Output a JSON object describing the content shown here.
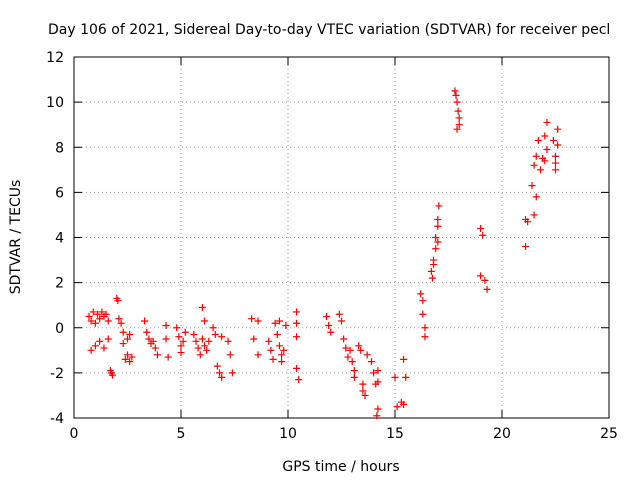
{
  "chart_data": {
    "type": "scatter",
    "title": "Day 106 of 2021, Sidereal Day-to-day VTEC variation (SDTVAR) for receiver pecl",
    "xlabel": "GPS time / hours",
    "ylabel": "SDTVAR / TECUs",
    "xlim": [
      0,
      25
    ],
    "ylim": [
      -4,
      12
    ],
    "x_ticks": [
      0,
      5,
      10,
      15,
      20,
      25
    ],
    "y_ticks": [
      -4,
      -2,
      0,
      2,
      4,
      6,
      8,
      10,
      12
    ],
    "grid": true,
    "marker": "plus",
    "color": "#ff0000",
    "series": [
      {
        "name": "SDTVAR",
        "points": [
          [
            0.7,
            0.5
          ],
          [
            0.8,
            0.3
          ],
          [
            0.9,
            0.7
          ],
          [
            1.0,
            0.2
          ],
          [
            1.1,
            0.6
          ],
          [
            1.2,
            0.4
          ],
          [
            1.3,
            0.7
          ],
          [
            1.4,
            0.5
          ],
          [
            1.5,
            0.6
          ],
          [
            1.6,
            0.3
          ],
          [
            0.8,
            -1.0
          ],
          [
            1.0,
            -0.8
          ],
          [
            1.2,
            -0.6
          ],
          [
            1.4,
            -0.9
          ],
          [
            1.6,
            -0.5
          ],
          [
            1.7,
            -1.9
          ],
          [
            1.8,
            -2.1
          ],
          [
            1.75,
            -2.0
          ],
          [
            2.0,
            1.3
          ],
          [
            2.05,
            1.2
          ],
          [
            2.1,
            0.4
          ],
          [
            2.2,
            0.2
          ],
          [
            2.3,
            -0.2
          ],
          [
            2.3,
            -0.7
          ],
          [
            2.4,
            -1.4
          ],
          [
            2.5,
            -1.2
          ],
          [
            2.6,
            -1.5
          ],
          [
            2.7,
            -1.3
          ],
          [
            2.5,
            -0.5
          ],
          [
            2.6,
            -0.3
          ],
          [
            3.3,
            0.3
          ],
          [
            3.4,
            -0.2
          ],
          [
            3.5,
            -0.5
          ],
          [
            3.6,
            -0.7
          ],
          [
            3.7,
            -0.6
          ],
          [
            3.8,
            -0.9
          ],
          [
            3.9,
            -1.2
          ],
          [
            4.3,
            0.1
          ],
          [
            4.3,
            -0.5
          ],
          [
            4.4,
            -1.3
          ],
          [
            4.8,
            0.0
          ],
          [
            4.9,
            -0.4
          ],
          [
            5.0,
            -0.8
          ],
          [
            5.1,
            -0.6
          ],
          [
            5.2,
            -0.2
          ],
          [
            5.0,
            -1.1
          ],
          [
            5.6,
            -0.3
          ],
          [
            5.7,
            -0.6
          ],
          [
            5.8,
            -0.9
          ],
          [
            5.9,
            -1.2
          ],
          [
            6.0,
            -0.5
          ],
          [
            6.1,
            -0.8
          ],
          [
            6.2,
            -1.0
          ],
          [
            6.0,
            0.9
          ],
          [
            6.1,
            0.3
          ],
          [
            6.3,
            -0.6
          ],
          [
            6.5,
            0.0
          ],
          [
            6.6,
            -0.3
          ],
          [
            6.7,
            -1.7
          ],
          [
            6.8,
            -2.0
          ],
          [
            6.9,
            -2.2
          ],
          [
            6.9,
            -0.4
          ],
          [
            7.2,
            -0.6
          ],
          [
            7.3,
            -1.2
          ],
          [
            7.4,
            -2.0
          ],
          [
            8.3,
            0.4
          ],
          [
            8.4,
            -0.5
          ],
          [
            8.6,
            0.3
          ],
          [
            8.6,
            -1.2
          ],
          [
            9.1,
            -0.6
          ],
          [
            9.2,
            -1.0
          ],
          [
            9.3,
            -1.4
          ],
          [
            9.4,
            0.2
          ],
          [
            9.5,
            -0.3
          ],
          [
            9.6,
            -0.8
          ],
          [
            9.7,
            -1.5
          ],
          [
            9.8,
            -1.0
          ],
          [
            9.9,
            0.1
          ],
          [
            9.6,
            0.3
          ],
          [
            9.7,
            -1.2
          ],
          [
            10.4,
            0.7
          ],
          [
            10.4,
            0.2
          ],
          [
            10.4,
            -1.8
          ],
          [
            10.5,
            -2.3
          ],
          [
            10.4,
            -0.4
          ],
          [
            11.8,
            0.5
          ],
          [
            11.9,
            0.1
          ],
          [
            12.0,
            -0.2
          ],
          [
            12.4,
            0.6
          ],
          [
            12.5,
            0.3
          ],
          [
            12.6,
            -0.5
          ],
          [
            12.7,
            -0.9
          ],
          [
            12.8,
            -1.3
          ],
          [
            12.9,
            -1.0
          ],
          [
            13.0,
            -1.5
          ],
          [
            13.1,
            -1.9
          ],
          [
            13.1,
            -2.2
          ],
          [
            13.3,
            -0.8
          ],
          [
            13.4,
            -1.0
          ],
          [
            13.5,
            -2.8
          ],
          [
            13.6,
            -3.0
          ],
          [
            13.5,
            -2.5
          ],
          [
            13.7,
            -1.2
          ],
          [
            13.9,
            -1.5
          ],
          [
            14.0,
            -2.0
          ],
          [
            14.1,
            -2.5
          ],
          [
            14.2,
            -2.4
          ],
          [
            14.2,
            -3.6
          ],
          [
            14.15,
            -3.9
          ],
          [
            14.2,
            -1.9
          ],
          [
            15.0,
            -2.2
          ],
          [
            15.1,
            -3.5
          ],
          [
            15.3,
            -3.3
          ],
          [
            15.4,
            -3.4
          ],
          [
            15.4,
            -1.4
          ],
          [
            15.5,
            -2.2
          ],
          [
            16.2,
            1.5
          ],
          [
            16.3,
            1.2
          ],
          [
            16.3,
            0.6
          ],
          [
            16.4,
            0.0
          ],
          [
            16.4,
            -0.4
          ],
          [
            16.7,
            2.5
          ],
          [
            16.8,
            3.0
          ],
          [
            16.8,
            2.8
          ],
          [
            16.9,
            3.5
          ],
          [
            16.9,
            4.0
          ],
          [
            17.0,
            4.5
          ],
          [
            17.0,
            4.8
          ],
          [
            17.05,
            5.4
          ],
          [
            17.0,
            3.8
          ],
          [
            16.75,
            2.2
          ],
          [
            17.8,
            10.5
          ],
          [
            17.85,
            10.3
          ],
          [
            17.9,
            10.0
          ],
          [
            17.95,
            9.6
          ],
          [
            18.0,
            9.3
          ],
          [
            18.0,
            9.0
          ],
          [
            17.9,
            8.8
          ],
          [
            19.0,
            4.4
          ],
          [
            19.1,
            4.1
          ],
          [
            19.0,
            2.3
          ],
          [
            19.2,
            2.1
          ],
          [
            19.3,
            1.7
          ],
          [
            21.1,
            4.8
          ],
          [
            21.1,
            3.6
          ],
          [
            21.2,
            4.7
          ],
          [
            21.4,
            6.3
          ],
          [
            21.5,
            5.0
          ],
          [
            21.5,
            7.2
          ],
          [
            21.6,
            7.6
          ],
          [
            21.6,
            5.8
          ],
          [
            21.7,
            8.3
          ],
          [
            21.8,
            7.0
          ],
          [
            21.9,
            7.5
          ],
          [
            22.0,
            8.5
          ],
          [
            22.1,
            9.1
          ],
          [
            22.1,
            7.9
          ],
          [
            22.0,
            7.4
          ],
          [
            22.4,
            8.3
          ],
          [
            22.5,
            7.6
          ],
          [
            22.5,
            7.0
          ],
          [
            22.6,
            8.8
          ],
          [
            22.6,
            8.1
          ],
          [
            22.5,
            7.3
          ]
        ]
      }
    ]
  }
}
